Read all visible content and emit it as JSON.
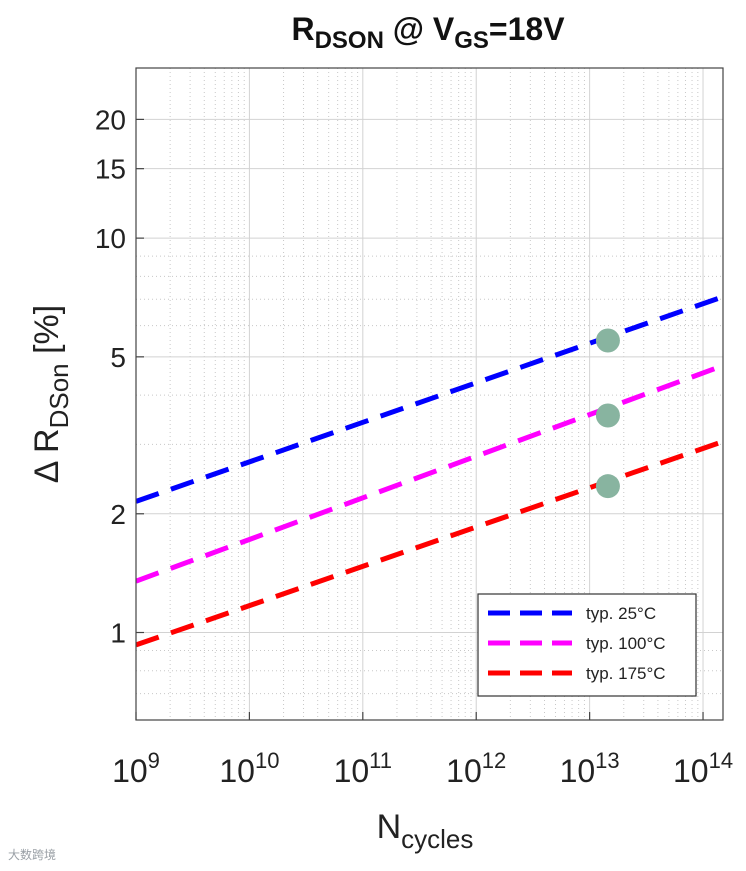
{
  "chart_data": {
    "type": "line",
    "title": {
      "main": "R",
      "sub": "DSON",
      "mid": " @ V",
      "sub2": "GS",
      "tail": "=18V"
    },
    "xlabel": {
      "main": "N",
      "sub": "cycles"
    },
    "ylabel": {
      "prefix": "Δ R",
      "sub": "DSon",
      "suffix": " [%]"
    },
    "x_scale": "log",
    "y_scale": "log",
    "xlim": [
      1000000000.0,
      150000000000000.0
    ],
    "ylim": [
      0.6,
      27
    ],
    "x_ticks": [
      {
        "value": 1000000000.0,
        "base": "10",
        "exp": "9"
      },
      {
        "value": 10000000000.0,
        "base": "10",
        "exp": "10"
      },
      {
        "value": 100000000000.0,
        "base": "10",
        "exp": "11"
      },
      {
        "value": 1000000000000.0,
        "base": "10",
        "exp": "12"
      },
      {
        "value": 10000000000000.0,
        "base": "10",
        "exp": "13"
      },
      {
        "value": 100000000000000.0,
        "base": "10",
        "exp": "14"
      }
    ],
    "y_ticks": [
      {
        "value": 1,
        "label": "1"
      },
      {
        "value": 2,
        "label": "2"
      },
      {
        "value": 5,
        "label": "5"
      },
      {
        "value": 10,
        "label": "10"
      },
      {
        "value": 15,
        "label": "15"
      },
      {
        "value": 20,
        "label": "20"
      }
    ],
    "grid": true,
    "series": [
      {
        "name": "typ. 25°C",
        "color": "#0000ff",
        "x": [
          1000000000.0,
          150000000000000.0
        ],
        "y": [
          2.15,
          7.1
        ]
      },
      {
        "name": "typ. 100°C",
        "color": "#ff00ff",
        "x": [
          1000000000.0,
          150000000000000.0
        ],
        "y": [
          1.35,
          4.75
        ]
      },
      {
        "name": "typ. 175°C",
        "color": "#ff0000",
        "x": [
          1000000000.0,
          150000000000000.0
        ],
        "y": [
          0.93,
          3.05
        ]
      }
    ],
    "markers": [
      {
        "x": 14500000000000.0,
        "y": 5.5,
        "color": "#88b4a0"
      },
      {
        "x": 14500000000000.0,
        "y": 3.55,
        "color": "#88b4a0"
      },
      {
        "x": 14500000000000.0,
        "y": 2.35,
        "color": "#88b4a0"
      }
    ],
    "legend_position": "bottom-right"
  },
  "watermark": "大数跨境"
}
